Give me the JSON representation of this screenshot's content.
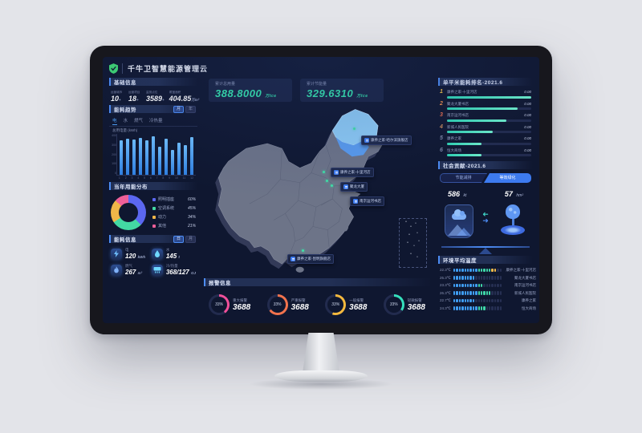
{
  "accent": {
    "blue": "#4d8df5",
    "teal": "#35e6ae",
    "screen_bg": "#0f1730"
  },
  "header": {
    "title": "千牛卫智慧能源管理云",
    "logo": "shield-icon"
  },
  "basic_info": {
    "title": "基础信息",
    "stats": [
      {
        "label": "运营城市",
        "value": "10",
        "suffix": "+"
      },
      {
        "label": "运营项目",
        "value": "18",
        "suffix": "+"
      },
      {
        "label": "监测点位",
        "value": "3589",
        "suffix": "+"
      },
      {
        "label": "覆盖面积",
        "value": "404.85",
        "suffix": "万m²"
      }
    ]
  },
  "trend": {
    "title": "能耗趋势",
    "toggles": [
      "月",
      "年"
    ],
    "active_toggle": "月",
    "tabs": [
      "电",
      "水",
      "燃气",
      "冷热量"
    ],
    "active_tab": "电",
    "ylabel": "总用电量 (kWh)",
    "chart_data": {
      "type": "bar",
      "categories": [
        "1",
        "2",
        "3",
        "4",
        "5",
        "6",
        "7",
        "8",
        "9",
        "10",
        "11",
        "12"
      ],
      "values": [
        84,
        88,
        86,
        90,
        85,
        95,
        68,
        88,
        60,
        78,
        72,
        92
      ],
      "yticks": [
        "400",
        "300",
        "200",
        "100",
        "0"
      ]
    }
  },
  "distribution": {
    "title": "当年用能分布",
    "slices": [
      {
        "label": "照明插座",
        "display": "60%",
        "value": 60,
        "color": "#5b67f1"
      },
      {
        "label": "空调系统",
        "display": "45%",
        "value": 45,
        "color": "#43d9a3"
      },
      {
        "label": "动力",
        "display": "34%",
        "value": 34,
        "color": "#f0b648"
      },
      {
        "label": "其他",
        "display": "21%",
        "value": 21,
        "color": "#ef5f98"
      }
    ]
  },
  "energy_info": {
    "title": "能耗信息",
    "toggles": [
      "日",
      "月"
    ],
    "items": [
      {
        "icon": "lightning-icon",
        "label": "电",
        "value": "120",
        "unit": "kWh"
      },
      {
        "icon": "water-drop-icon",
        "label": "水",
        "value": "145",
        "unit": "t"
      },
      {
        "icon": "flame-icon",
        "label": "燃气",
        "value": "267",
        "unit": "m³"
      },
      {
        "icon": "hvac-icon",
        "label": "冷/热量",
        "value": "368/127",
        "unit": "GJ"
      }
    ]
  },
  "totals": [
    {
      "label": "累计总用量",
      "value": "388.8000",
      "unit": "万tce"
    },
    {
      "label": "累计节能量",
      "value": "329.6310",
      "unit": "万tce"
    }
  ],
  "map": {
    "highlight_color": "#7fc4f8",
    "sites": [
      {
        "name": "康养之家-哈尔滨旗舰店"
      },
      {
        "name": "康养之家-十里河店"
      },
      {
        "name": "聚龙大厦"
      },
      {
        "name": "南京运河书店"
      },
      {
        "name": "康养之家-昆明旗舰店"
      }
    ]
  },
  "alarms": {
    "title": "报警信息",
    "items": [
      {
        "label": "重大报警",
        "pct": "33%",
        "arc": 40,
        "value": "3688",
        "color": "#f0509a"
      },
      {
        "label": "严重报警",
        "pct": "33%",
        "arc": 65,
        "value": "3688",
        "color": "#f2734d"
      },
      {
        "label": "一般报警",
        "pct": "33%",
        "arc": 55,
        "value": "3688",
        "color": "#f5b93e"
      },
      {
        "label": "轻微报警",
        "pct": "33%",
        "arc": 35,
        "value": "3688",
        "color": "#35e0bc"
      }
    ]
  },
  "ranking": {
    "title": "单平米能耗排名-2021.6",
    "chart_data": {
      "type": "bar",
      "categories": [
        "康养之家-十里河店",
        "聚龙大厦书店",
        "南京运河书店",
        "新城人民医院",
        "康养之家",
        "恒大商场"
      ],
      "values": [
        100,
        84,
        70,
        54,
        41,
        41
      ]
    },
    "items": [
      {
        "rank": "1",
        "rank_color": "#f5c344",
        "name": "康养之家-十里河店",
        "value": "0.00",
        "bar": 100
      },
      {
        "rank": "2",
        "rank_color": "#f08f4c",
        "name": "聚龙大厦书店",
        "value": "0.00",
        "bar": 84
      },
      {
        "rank": "3",
        "rank_color": "#ef6d4d",
        "name": "南京运河书店",
        "value": "0.00",
        "bar": 70
      },
      {
        "rank": "4",
        "rank_color": "#c98b5a",
        "name": "新城人民医院",
        "value": "0.00",
        "bar": 54
      },
      {
        "rank": "5",
        "rank_color": "#7d87a5",
        "name": "康养之家",
        "value": "0.00",
        "bar": 41
      },
      {
        "rank": "6",
        "rank_color": "#7d87a5",
        "name": "恒大商场",
        "value": "0.00",
        "bar": 41
      }
    ]
  },
  "contribution": {
    "title": "社会贡献-2021.6",
    "tabs": [
      {
        "label": "节能减排",
        "active": false
      },
      {
        "label": "等效绿化",
        "active": true
      }
    ],
    "left": {
      "value": "586",
      "unit": "kt"
    },
    "right": {
      "value": "57",
      "unit": "hm²"
    }
  },
  "temperature": {
    "title": "环境平均温度",
    "rows": [
      {
        "temp": "22.3℃",
        "filled": 16,
        "total": 18,
        "name": "康养之家-十里河店"
      },
      {
        "temp": "25.3℃",
        "filled": 8,
        "total": 18,
        "name": "聚龙大厦书店"
      },
      {
        "temp": "23.3℃",
        "filled": 11,
        "total": 18,
        "name": "南京运河书店"
      },
      {
        "temp": "26.3℃",
        "filled": 14,
        "total": 18,
        "name": "新城人民医院"
      },
      {
        "temp": "22.7℃",
        "filled": 8,
        "total": 18,
        "name": "康养之家"
      },
      {
        "temp": "24.3℃",
        "filled": 12,
        "total": 18,
        "name": "恒大商场"
      }
    ]
  }
}
